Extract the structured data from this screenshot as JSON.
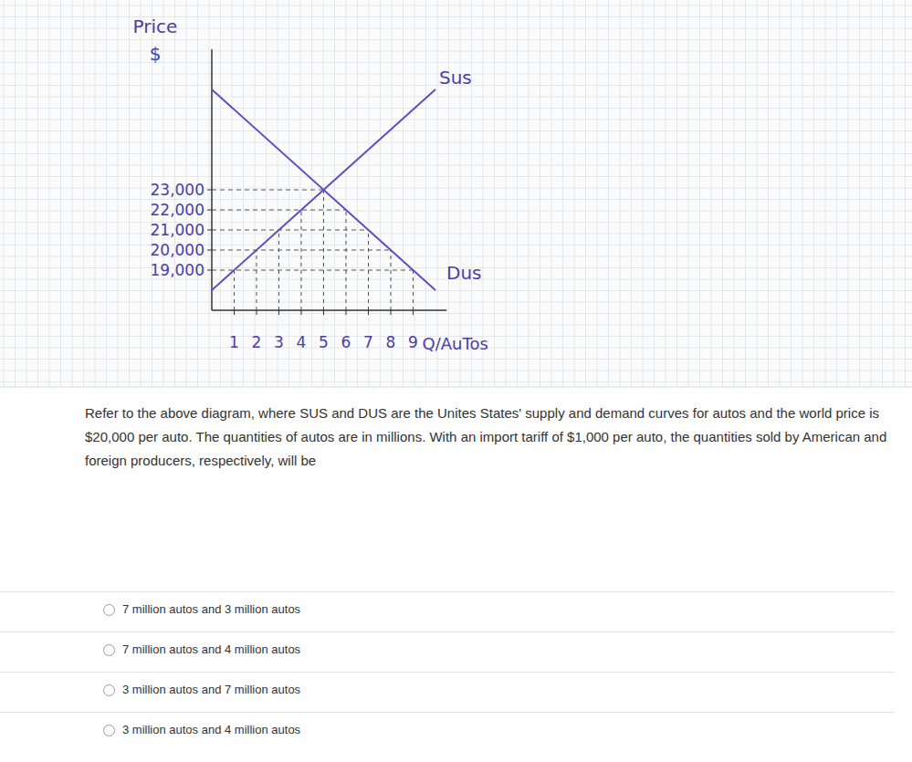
{
  "chart_data": {
    "type": "line",
    "ylabel": [
      "Price",
      "$"
    ],
    "xlabel": "Q/AuTos",
    "xlim": [
      0,
      10.5
    ],
    "xticks": [
      1,
      2,
      3,
      4,
      5,
      6,
      7,
      8,
      9
    ],
    "ylim": [
      17000,
      30000
    ],
    "yticks": [
      {
        "value": 19000,
        "label": "19,000"
      },
      {
        "value": 20000,
        "label": "20,000"
      },
      {
        "value": 21000,
        "label": "21,000"
      },
      {
        "value": 22000,
        "label": "22,000"
      },
      {
        "value": 23000,
        "label": "23,000"
      }
    ],
    "grid": false,
    "series": [
      {
        "name": "Sus",
        "color": "#5b4fc4",
        "x": [
          0,
          10
        ],
        "values": [
          18000,
          28000
        ]
      },
      {
        "name": "Dus",
        "color": "#5b4fc4",
        "x": [
          0,
          10
        ],
        "values": [
          28000,
          18000
        ]
      }
    ]
  },
  "question": "Refer to the above diagram, where SUS and DUS are the Unites States' supply and demand curves for autos and the world price is $20,000 per auto. The quantities of autos are in millions. With an import tariff of $1,000 per auto, the quantities sold by American and foreign producers, respectively, will be",
  "options": [
    "7 million autos and 3 million autos",
    "7 million autos and 4 million autos",
    "3 million autos and 7 million autos",
    "3 million autos and 4 million autos"
  ]
}
